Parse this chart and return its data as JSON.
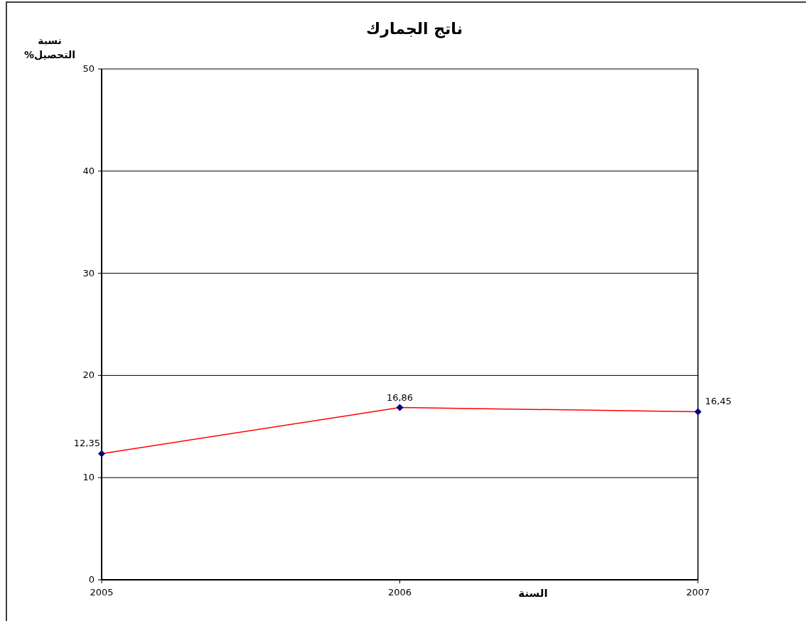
{
  "chart_data": {
    "type": "line",
    "title": "ناتج الجمارك",
    "xlabel": "السنة",
    "ylabel": "نسبة التحصيل%",
    "categories": [
      "2005",
      "2006",
      "2007"
    ],
    "series": [
      {
        "color": "#ff0000",
        "values": [
          12.35,
          16.86,
          16.45
        ],
        "value_labels": [
          "12,35",
          "16,86",
          "16,45"
        ],
        "colors": [
          "#000080",
          "#000080",
          "#000080"
        ]
      }
    ],
    "ylim": [
      0,
      50
    ],
    "yticks": [
      0,
      10,
      20,
      30,
      40,
      50
    ],
    "grid": "y",
    "marker": "diamond",
    "line_style": "solid"
  }
}
